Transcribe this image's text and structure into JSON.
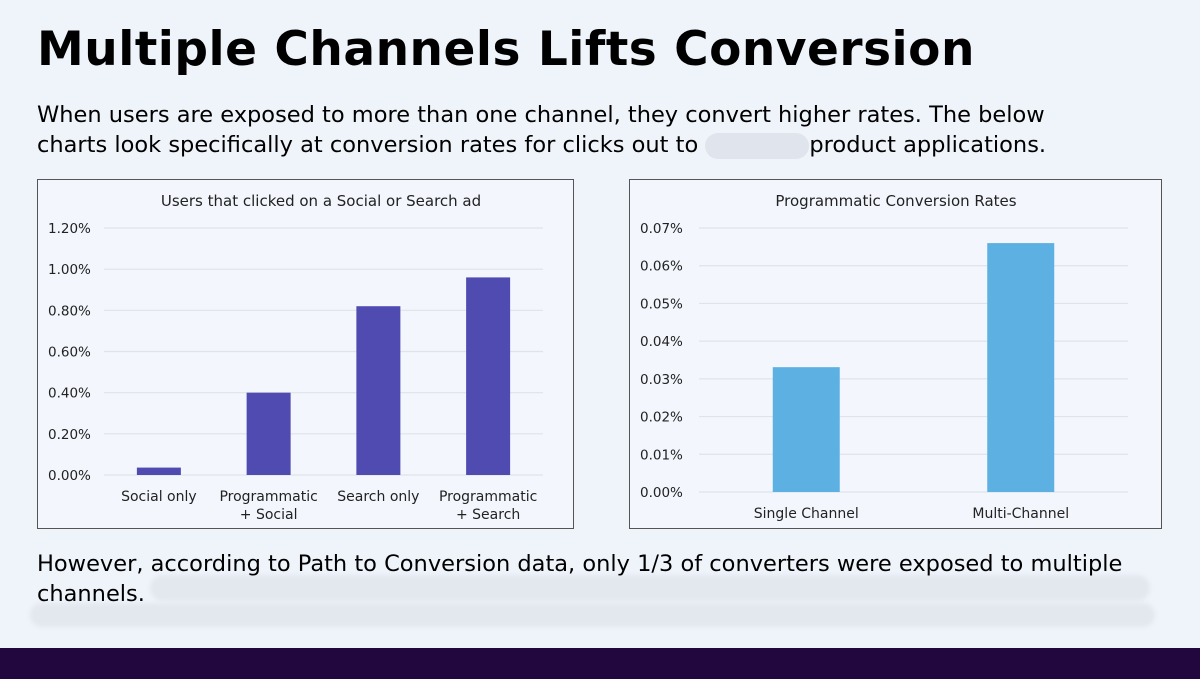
{
  "title": "Multiple Channels Lifts Conversion",
  "intro": {
    "line1": "When users are exposed to more than one channel, they convert higher rates. The below",
    "line2a": "charts look specifically at conversion rates for clicks out to",
    "line2b": "product applications."
  },
  "outro": {
    "line1": "However, according to Path to Conversion data, only 1/3 of converters were exposed to multiple",
    "line2": "channels."
  },
  "colors": {
    "left_bars": "#4f4bb0",
    "right_bars": "#5db1e2",
    "footer": "#22073f"
  },
  "chart_data": [
    {
      "type": "bar",
      "title": "Users that clicked on a Social or Search ad",
      "categories": [
        [
          "Social only"
        ],
        [
          "Programmatic",
          "+ Social"
        ],
        [
          "Search only"
        ],
        [
          "Programmatic",
          "+ Search"
        ]
      ],
      "values": [
        0.036,
        0.4,
        0.82,
        0.96
      ],
      "unit": "%",
      "ylim": [
        0,
        1.2
      ],
      "yticks": [
        "0.00%",
        "0.20%",
        "0.40%",
        "0.60%",
        "0.80%",
        "1.00%",
        "1.20%"
      ],
      "grid": true,
      "color": "#4f4bb0"
    },
    {
      "type": "bar",
      "title": "Programmatic Conversion Rates",
      "categories": [
        [
          "Single Channel"
        ],
        [
          "Multi-Channel"
        ]
      ],
      "values": [
        0.0331,
        0.066
      ],
      "unit": "%",
      "ylim": [
        0,
        0.07
      ],
      "yticks": [
        "0.00%",
        "0.01%",
        "0.02%",
        "0.03%",
        "0.04%",
        "0.05%",
        "0.06%",
        "0.07%"
      ],
      "grid": true,
      "color": "#5db1e2"
    }
  ]
}
